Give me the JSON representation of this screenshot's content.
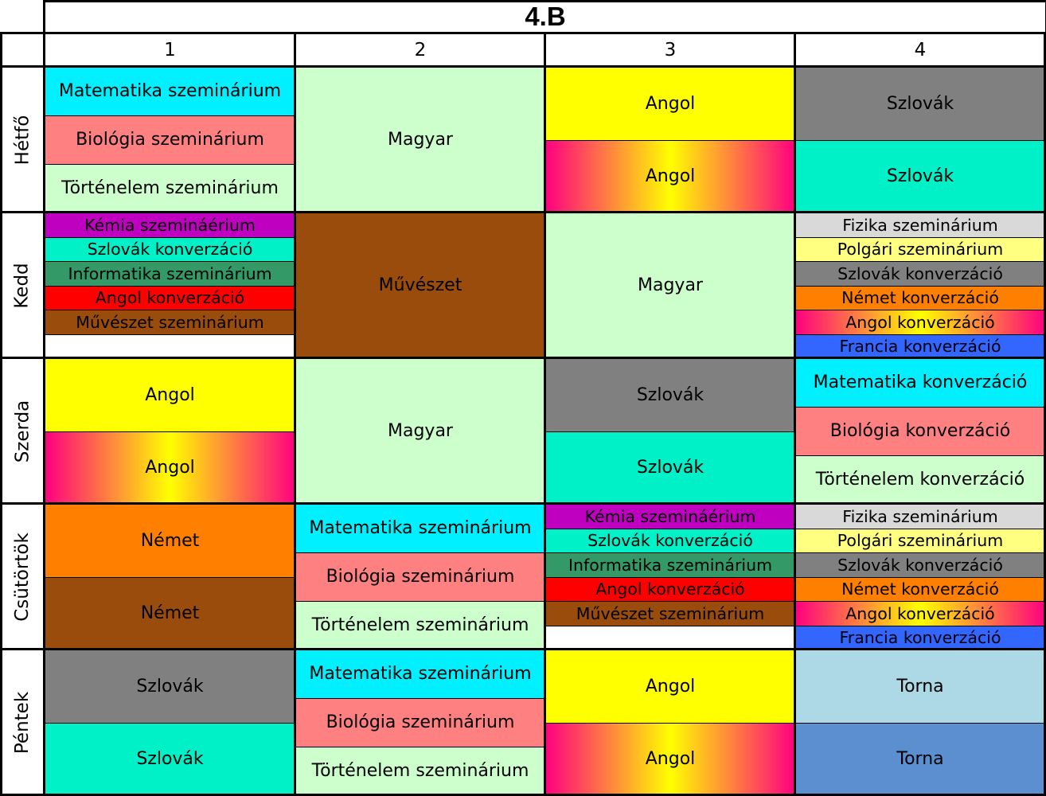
{
  "title": "4.B",
  "columns": [
    "1",
    "2",
    "3",
    "4"
  ],
  "days": [
    {
      "name": "Hétfő",
      "periods": [
        [
          {
            "text": "Matematika szeminárium",
            "color": "#00f0ff"
          },
          {
            "text": "Biológia szeminárium",
            "color": "#ff8080"
          },
          {
            "text": "Történelem szeminárium",
            "color": "#ccffcc"
          }
        ],
        [
          {
            "text": "Magyar",
            "color": "#ccffcc"
          }
        ],
        [
          {
            "text": "Angol",
            "color": "#ffff00"
          },
          {
            "text": "Angol",
            "color": "gradient"
          }
        ],
        [
          {
            "text": "Szlovák",
            "color": "#808080"
          },
          {
            "text": "Szlovák",
            "color": "#00f0c8"
          }
        ]
      ]
    },
    {
      "name": "Kedd",
      "periods": [
        [
          {
            "text": "Kémia szemináérium",
            "color": "#c000c0"
          },
          {
            "text": "Szlovák konverzáció",
            "color": "#00f0c8"
          },
          {
            "text": "Informatika szeminárium",
            "color": "#339966"
          },
          {
            "text": "Angol konverzáció",
            "color": "#ff0000"
          },
          {
            "text": "Művészet szeminárium",
            "color": "#994c0c"
          },
          {
            "text": "",
            "color": "#ffffff"
          }
        ],
        [
          {
            "text": "Művészet",
            "color": "#994c0c"
          }
        ],
        [
          {
            "text": "Magyar",
            "color": "#ccffcc"
          }
        ],
        [
          {
            "text": "Fizika szeminárium",
            "color": "#d9d9d9"
          },
          {
            "text": "Polgári szeminárium",
            "color": "#ffff80"
          },
          {
            "text": "Szlovák konverzáció",
            "color": "#808080"
          },
          {
            "text": "Német konverzáció",
            "color": "#ff8000"
          },
          {
            "text": "Angol konverzáció",
            "color": "gradient"
          },
          {
            "text": "Francia konverzáció",
            "color": "#3366ff"
          }
        ]
      ]
    },
    {
      "name": "Szerda",
      "periods": [
        [
          {
            "text": "Angol",
            "color": "#ffff00"
          },
          {
            "text": "Angol",
            "color": "gradient"
          }
        ],
        [
          {
            "text": "Magyar",
            "color": "#ccffcc"
          }
        ],
        [
          {
            "text": "Szlovák",
            "color": "#808080"
          },
          {
            "text": "Szlovák",
            "color": "#00f0c8"
          }
        ],
        [
          {
            "text": "Matematika konverzáció",
            "color": "#00f0ff"
          },
          {
            "text": "Biológia konverzáció",
            "color": "#ff8080"
          },
          {
            "text": "Történelem konverzáció",
            "color": "#ccffcc"
          }
        ]
      ]
    },
    {
      "name": "Csütörtök",
      "periods": [
        [
          {
            "text": "Német",
            "color": "#ff8000"
          },
          {
            "text": "Német",
            "color": "#994c0c"
          }
        ],
        [
          {
            "text": "Matematika szeminárium",
            "color": "#00f0ff"
          },
          {
            "text": "Biológia szeminárium",
            "color": "#ff8080"
          },
          {
            "text": "Történelem szeminárium",
            "color": "#ccffcc"
          }
        ],
        [
          {
            "text": "Kémia szemináérium",
            "color": "#c000c0"
          },
          {
            "text": "Szlovák konverzáció",
            "color": "#00f0c8"
          },
          {
            "text": "Informatika szeminárium",
            "color": "#339966"
          },
          {
            "text": "Angol konverzáció",
            "color": "#ff0000"
          },
          {
            "text": "Művészet szeminárium",
            "color": "#994c0c"
          },
          {
            "text": "",
            "color": "#ffffff"
          }
        ],
        [
          {
            "text": "Fizika szeminárium",
            "color": "#d9d9d9"
          },
          {
            "text": "Polgári szeminárium",
            "color": "#ffff80"
          },
          {
            "text": "Szlovák konverzáció",
            "color": "#808080"
          },
          {
            "text": "Német konverzáció",
            "color": "#ff8000"
          },
          {
            "text": "Angol konverzáció",
            "color": "gradient"
          },
          {
            "text": "Francia konverzáció",
            "color": "#3366ff"
          }
        ]
      ]
    },
    {
      "name": "Péntek",
      "periods": [
        [
          {
            "text": "Szlovák",
            "color": "#808080"
          },
          {
            "text": "Szlovák",
            "color": "#00f0c8"
          }
        ],
        [
          {
            "text": "Matematika szeminárium",
            "color": "#00f0ff"
          },
          {
            "text": "Biológia szeminárium",
            "color": "#ff8080"
          },
          {
            "text": "Történelem szeminárium",
            "color": "#ccffcc"
          }
        ],
        [
          {
            "text": "Angol",
            "color": "#ffff00"
          },
          {
            "text": "Angol",
            "color": "gradient"
          }
        ],
        [
          {
            "text": "Torna",
            "color": "#add8e6"
          },
          {
            "text": "Torna",
            "color": "#5b8fd0"
          }
        ]
      ]
    }
  ]
}
